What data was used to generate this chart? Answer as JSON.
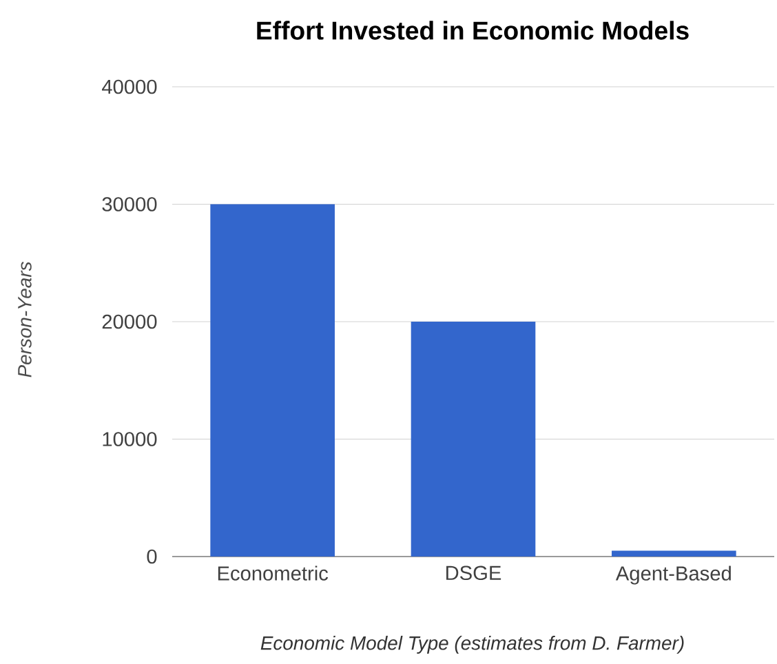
{
  "chart_data": {
    "type": "bar",
    "title": "Effort Invested in Economic Models",
    "xlabel": "Economic Model Type (estimates from D. Farmer)",
    "ylabel": "Person-Years",
    "categories": [
      "Econometric",
      "DSGE",
      "Agent-Based"
    ],
    "values": [
      30000,
      20000,
      500
    ],
    "color": "#3366cc",
    "ylim": [
      0,
      40000
    ],
    "yticks": [
      0,
      10000,
      20000,
      30000,
      40000
    ],
    "grid": "y"
  }
}
